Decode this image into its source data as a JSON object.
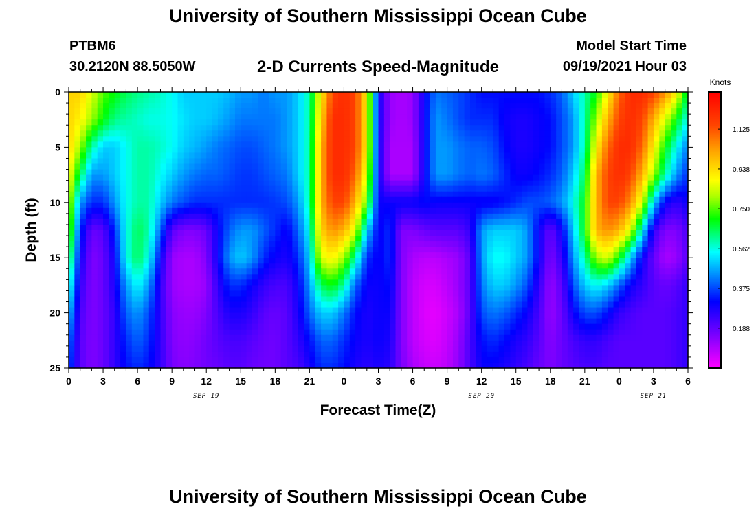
{
  "header": {
    "title": "University of Southern Mississippi Ocean Cube",
    "station_id": "PTBM6",
    "station_coords": "30.2120N  88.5050W",
    "subtitle": "2-D Currents Speed-Magnitude",
    "model_start_label": "Model Start Time",
    "model_start_value": "09/19/2021 Hour 03"
  },
  "footer": {
    "title": "University of Southern Mississippi Ocean Cube"
  },
  "chart_data": {
    "type": "heatmap",
    "title": "2-D Currents Speed-Magnitude",
    "xlabel": "Forecast Time(Z)",
    "ylabel": "Depth (ft)",
    "x_range_hours": [
      0,
      54
    ],
    "y_range_ft": [
      0,
      25
    ],
    "y_inverted": true,
    "x_tick_labels": [
      "0",
      "3",
      "6",
      "9",
      "12",
      "15",
      "18",
      "21",
      "0",
      "3",
      "6",
      "9",
      "12",
      "15",
      "18",
      "21",
      "0",
      "3",
      "6"
    ],
    "y_tick_labels": [
      "0",
      "5",
      "10",
      "15",
      "20",
      "25"
    ],
    "date_labels": [
      {
        "label": "SEP 19",
        "hour": 12
      },
      {
        "label": "SEP 20",
        "hour": 36
      },
      {
        "label": "SEP 21",
        "hour": 51
      }
    ],
    "colorbar": {
      "title": "Knots",
      "min": 0,
      "max": 1.3,
      "tick_labels": [
        "1.125",
        "0.938",
        "0.750",
        "0.562",
        "0.375",
        "0.188"
      ],
      "tick_values": [
        1.125,
        0.938,
        0.75,
        0.562,
        0.375,
        0.188
      ]
    },
    "speed_grid_knots": {
      "hours": [
        0,
        1,
        2,
        3,
        4,
        5,
        6,
        7,
        8,
        9,
        10,
        11,
        12,
        13,
        14,
        15,
        16,
        17,
        18,
        19,
        20,
        21,
        22,
        23,
        24,
        25,
        26,
        27,
        28,
        29,
        30,
        31,
        32,
        33,
        34,
        35,
        36,
        37,
        38,
        39,
        40,
        41,
        42,
        43,
        44,
        45,
        46,
        47,
        48,
        49,
        50,
        51,
        52,
        53,
        54
      ],
      "depths_ft": [
        0,
        2.5,
        5,
        7.5,
        10,
        12.5,
        15,
        17.5,
        20,
        22.5,
        25
      ],
      "rows": [
        [
          0.95,
          0.95,
          0.85,
          0.75,
          0.7,
          0.65,
          0.62,
          0.6,
          0.58,
          0.55,
          0.5,
          0.5,
          0.5,
          0.5,
          0.48,
          0.45,
          0.45,
          0.42,
          0.45,
          0.45,
          0.5,
          0.6,
          0.9,
          1.15,
          1.2,
          1.15,
          0.9,
          0.3,
          0.12,
          0.1,
          0.12,
          0.3,
          0.42,
          0.4,
          0.38,
          0.35,
          0.32,
          0.32,
          0.32,
          0.32,
          0.32,
          0.32,
          0.35,
          0.4,
          0.5,
          0.6,
          0.7,
          0.9,
          1.1,
          1.2,
          1.2,
          1.15,
          1.05,
          0.9,
          0.65
        ],
        [
          0.95,
          0.9,
          0.8,
          0.7,
          0.62,
          0.6,
          0.58,
          0.56,
          0.56,
          0.55,
          0.52,
          0.5,
          0.5,
          0.48,
          0.45,
          0.42,
          0.42,
          0.42,
          0.42,
          0.45,
          0.5,
          0.6,
          0.95,
          1.2,
          1.2,
          1.15,
          0.9,
          0.3,
          0.12,
          0.1,
          0.12,
          0.3,
          0.45,
          0.42,
          0.38,
          0.35,
          0.35,
          0.35,
          0.3,
          0.28,
          0.28,
          0.3,
          0.32,
          0.38,
          0.45,
          0.6,
          0.8,
          1.0,
          1.15,
          1.2,
          1.15,
          1.0,
          0.85,
          0.7,
          0.55
        ],
        [
          0.95,
          0.8,
          0.6,
          0.5,
          0.5,
          0.55,
          0.6,
          0.6,
          0.58,
          0.55,
          0.5,
          0.48,
          0.45,
          0.42,
          0.4,
          0.38,
          0.38,
          0.4,
          0.42,
          0.45,
          0.5,
          0.6,
          1.0,
          1.2,
          1.2,
          1.15,
          0.9,
          0.3,
          0.1,
          0.1,
          0.1,
          0.3,
          0.45,
          0.45,
          0.42,
          0.4,
          0.4,
          0.38,
          0.32,
          0.28,
          0.28,
          0.3,
          0.32,
          0.38,
          0.45,
          0.6,
          0.9,
          1.1,
          1.2,
          1.2,
          1.1,
          0.9,
          0.7,
          0.55,
          0.42
        ],
        [
          0.9,
          0.65,
          0.45,
          0.45,
          0.5,
          0.55,
          0.6,
          0.6,
          0.55,
          0.5,
          0.45,
          0.42,
          0.4,
          0.4,
          0.38,
          0.36,
          0.36,
          0.38,
          0.4,
          0.42,
          0.5,
          0.6,
          1.0,
          1.2,
          1.2,
          1.1,
          0.85,
          0.3,
          0.1,
          0.1,
          0.1,
          0.3,
          0.45,
          0.45,
          0.42,
          0.4,
          0.42,
          0.4,
          0.35,
          0.3,
          0.3,
          0.32,
          0.35,
          0.4,
          0.5,
          0.65,
          1.0,
          1.15,
          1.2,
          1.15,
          1.0,
          0.8,
          0.6,
          0.45,
          0.35
        ],
        [
          0.85,
          0.45,
          0.35,
          0.35,
          0.45,
          0.55,
          0.6,
          0.6,
          0.5,
          0.42,
          0.38,
          0.35,
          0.35,
          0.35,
          0.35,
          0.35,
          0.35,
          0.35,
          0.36,
          0.38,
          0.45,
          0.6,
          1.0,
          1.15,
          1.15,
          1.0,
          0.75,
          0.3,
          0.3,
          0.3,
          0.3,
          0.32,
          0.3,
          0.3,
          0.3,
          0.3,
          0.3,
          0.3,
          0.32,
          0.35,
          0.38,
          0.38,
          0.4,
          0.45,
          0.55,
          0.7,
          1.0,
          1.15,
          1.15,
          1.05,
          0.85,
          0.5,
          0.3,
          0.25,
          0.3
        ],
        [
          0.8,
          0.35,
          0.18,
          0.2,
          0.35,
          0.55,
          0.65,
          0.6,
          0.4,
          0.2,
          0.15,
          0.15,
          0.18,
          0.3,
          0.4,
          0.45,
          0.45,
          0.4,
          0.35,
          0.3,
          0.4,
          0.55,
          0.95,
          1.05,
          1.0,
          0.85,
          0.5,
          0.3,
          0.35,
          0.15,
          0.15,
          0.18,
          0.2,
          0.2,
          0.2,
          0.25,
          0.45,
          0.5,
          0.5,
          0.5,
          0.45,
          0.3,
          0.18,
          0.3,
          0.5,
          0.7,
          1.0,
          1.05,
          1.0,
          0.85,
          0.55,
          0.25,
          0.15,
          0.15,
          0.22
        ],
        [
          0.7,
          0.3,
          0.15,
          0.18,
          0.3,
          0.55,
          0.65,
          0.55,
          0.3,
          0.12,
          0.1,
          0.1,
          0.15,
          0.3,
          0.45,
          0.5,
          0.45,
          0.35,
          0.3,
          0.28,
          0.35,
          0.5,
          0.85,
          0.9,
          0.8,
          0.6,
          0.35,
          0.3,
          0.35,
          0.15,
          0.1,
          0.08,
          0.08,
          0.1,
          0.12,
          0.2,
          0.45,
          0.55,
          0.55,
          0.5,
          0.45,
          0.3,
          0.15,
          0.25,
          0.45,
          0.6,
          0.8,
          0.85,
          0.7,
          0.5,
          0.3,
          0.18,
          0.1,
          0.12,
          0.2
        ],
        [
          0.6,
          0.25,
          0.15,
          0.18,
          0.28,
          0.45,
          0.55,
          0.45,
          0.25,
          0.12,
          0.1,
          0.1,
          0.12,
          0.25,
          0.35,
          0.35,
          0.3,
          0.25,
          0.22,
          0.22,
          0.3,
          0.45,
          0.65,
          0.7,
          0.6,
          0.4,
          0.3,
          0.3,
          0.32,
          0.15,
          0.08,
          0.05,
          0.05,
          0.08,
          0.12,
          0.2,
          0.42,
          0.5,
          0.5,
          0.45,
          0.38,
          0.25,
          0.12,
          0.2,
          0.38,
          0.5,
          0.55,
          0.5,
          0.4,
          0.3,
          0.25,
          0.2,
          0.18,
          0.2,
          0.25
        ],
        [
          0.5,
          0.22,
          0.15,
          0.18,
          0.25,
          0.4,
          0.45,
          0.38,
          0.25,
          0.14,
          0.12,
          0.12,
          0.15,
          0.22,
          0.28,
          0.28,
          0.25,
          0.2,
          0.18,
          0.2,
          0.28,
          0.4,
          0.5,
          0.5,
          0.42,
          0.32,
          0.28,
          0.3,
          0.3,
          0.15,
          0.08,
          0.04,
          0.03,
          0.06,
          0.1,
          0.2,
          0.38,
          0.42,
          0.4,
          0.35,
          0.3,
          0.22,
          0.12,
          0.18,
          0.3,
          0.38,
          0.38,
          0.32,
          0.25,
          0.22,
          0.2,
          0.2,
          0.2,
          0.22,
          0.25
        ],
        [
          0.42,
          0.2,
          0.15,
          0.18,
          0.25,
          0.35,
          0.4,
          0.35,
          0.25,
          0.15,
          0.13,
          0.14,
          0.17,
          0.2,
          0.22,
          0.22,
          0.2,
          0.18,
          0.17,
          0.2,
          0.25,
          0.32,
          0.4,
          0.4,
          0.35,
          0.3,
          0.28,
          0.3,
          0.28,
          0.15,
          0.08,
          0.05,
          0.04,
          0.07,
          0.12,
          0.22,
          0.32,
          0.35,
          0.32,
          0.28,
          0.25,
          0.2,
          0.14,
          0.18,
          0.22,
          0.25,
          0.25,
          0.22,
          0.2,
          0.2,
          0.2,
          0.2,
          0.2,
          0.22,
          0.25
        ],
        [
          0.38,
          0.2,
          0.15,
          0.18,
          0.25,
          0.32,
          0.35,
          0.32,
          0.25,
          0.16,
          0.14,
          0.15,
          0.17,
          0.18,
          0.2,
          0.2,
          0.18,
          0.17,
          0.17,
          0.2,
          0.22,
          0.28,
          0.35,
          0.35,
          0.32,
          0.28,
          0.26,
          0.28,
          0.26,
          0.16,
          0.1,
          0.07,
          0.06,
          0.08,
          0.13,
          0.22,
          0.3,
          0.3,
          0.28,
          0.25,
          0.22,
          0.18,
          0.15,
          0.18,
          0.2,
          0.22,
          0.22,
          0.2,
          0.2,
          0.2,
          0.2,
          0.2,
          0.2,
          0.22,
          0.25
        ]
      ]
    }
  }
}
